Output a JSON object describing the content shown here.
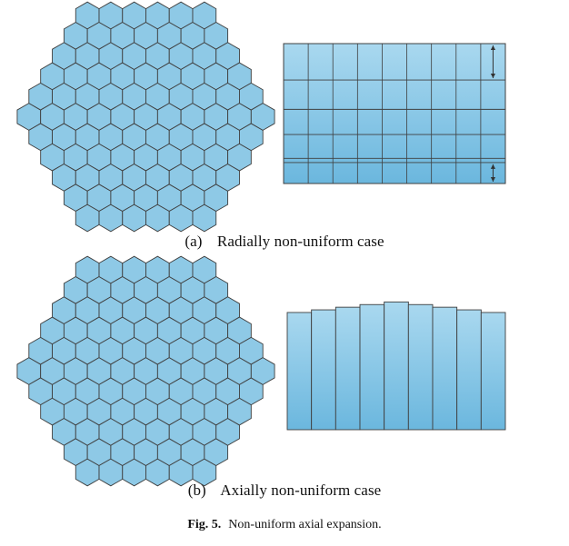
{
  "colors": {
    "fill": "#8ec9e6",
    "fill_light": "#a9d8ef",
    "fill_dark": "#6bb7de",
    "stroke": "#3f3f3f",
    "arrow": "#333333"
  },
  "hex_map": {
    "rings": 5,
    "shape": "hexagonal assembly core"
  },
  "panel_a": {
    "label": "(a)",
    "caption": "Radially non-uniform case",
    "block": {
      "columns": 9,
      "row_fractions": [
        0,
        0.26,
        0.47,
        0.65,
        0.82,
        0.85,
        1.0
      ],
      "arrow_rows": [
        0,
        5
      ]
    }
  },
  "panel_b": {
    "label": "(b)",
    "caption": "Axially non-uniform case",
    "block": {
      "columns": 9,
      "column_heights": [
        0.89,
        0.91,
        0.93,
        0.95,
        0.97,
        0.95,
        0.93,
        0.91,
        0.89
      ]
    }
  },
  "figure_caption": {
    "label": "Fig. 5.",
    "text": "Non-uniform axial expansion."
  }
}
